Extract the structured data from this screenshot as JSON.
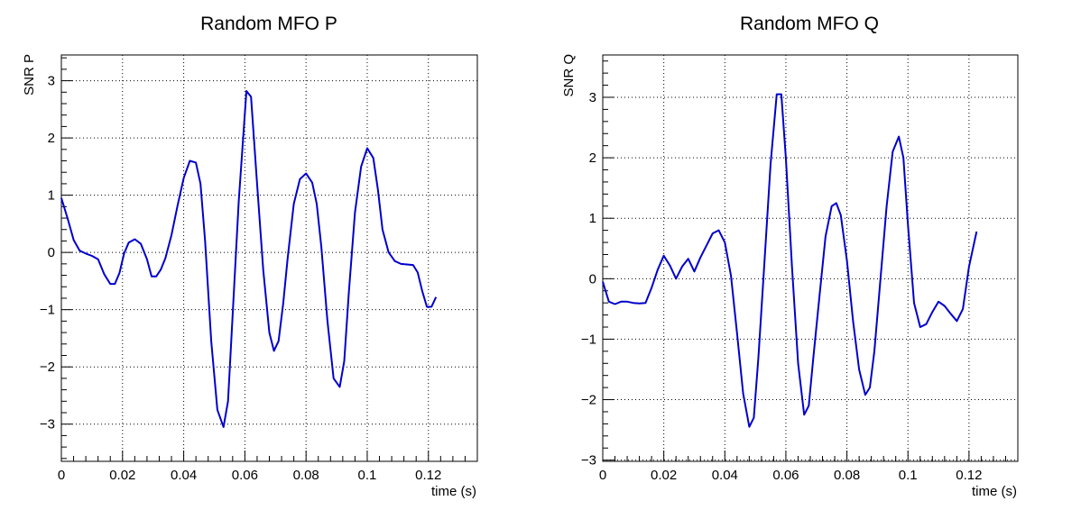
{
  "chart_data": [
    {
      "type": "line",
      "title": "Random MFO P",
      "xlabel": "time (s)",
      "ylabel": "SNR P",
      "xlim": [
        0,
        0.136
      ],
      "ylim": [
        -3.65,
        3.45
      ],
      "x_ticks": [
        0,
        0.02,
        0.04,
        0.06,
        0.08,
        0.1,
        0.12
      ],
      "x_tick_labels": [
        "0",
        "0.02",
        "0.04",
        "0.06",
        "0.08",
        "0.1",
        "0.12"
      ],
      "y_ticks": [
        -3,
        -2,
        -1,
        0,
        1,
        2,
        3
      ],
      "y_tick_labels": [
        "−3",
        "−2",
        "−1",
        "0",
        "1",
        "2",
        "3"
      ],
      "grid": true,
      "color": "#0000cc",
      "series": [
        {
          "x": [
            0,
            0.002,
            0.004,
            0.006,
            0.008,
            0.01,
            0.012,
            0.014,
            0.016,
            0.0175,
            0.019,
            0.0205,
            0.022,
            0.024,
            0.026,
            0.028,
            0.0295,
            0.031,
            0.0325,
            0.034,
            0.036,
            0.038,
            0.04,
            0.042,
            0.044,
            0.0455,
            0.047,
            0.049,
            0.051,
            0.053,
            0.0545,
            0.056,
            0.058,
            0.0605,
            0.062,
            0.064,
            0.066,
            0.068,
            0.0695,
            0.071,
            0.0725,
            0.074,
            0.076,
            0.078,
            0.08,
            0.082,
            0.0835,
            0.085,
            0.087,
            0.089,
            0.091,
            0.0925,
            0.094,
            0.096,
            0.098,
            0.1,
            0.102,
            0.1035,
            0.105,
            0.107,
            0.109,
            0.111,
            0.113,
            0.115,
            0.1165,
            0.118,
            0.1195,
            0.121,
            0.1225
          ],
          "y": [
            0.95,
            0.6,
            0.22,
            0.03,
            -0.02,
            -0.06,
            -0.12,
            -0.38,
            -0.55,
            -0.55,
            -0.36,
            -0.02,
            0.17,
            0.23,
            0.15,
            -0.12,
            -0.42,
            -0.42,
            -0.3,
            -0.1,
            0.3,
            0.82,
            1.3,
            1.6,
            1.57,
            1.2,
            0.2,
            -1.55,
            -2.75,
            -3.05,
            -2.6,
            -1.1,
            0.9,
            2.82,
            2.72,
            1.2,
            -0.3,
            -1.4,
            -1.72,
            -1.55,
            -0.9,
            -0.1,
            0.85,
            1.28,
            1.38,
            1.22,
            0.85,
            0.1,
            -1.2,
            -2.2,
            -2.35,
            -1.9,
            -0.7,
            0.7,
            1.5,
            1.82,
            1.65,
            1.1,
            0.4,
            0.0,
            -0.15,
            -0.2,
            -0.21,
            -0.22,
            -0.35,
            -0.68,
            -0.95,
            -0.95,
            -0.78
          ]
        }
      ]
    },
    {
      "type": "line",
      "title": "Random MFO Q",
      "xlabel": "time (s)",
      "ylabel": "SNR Q",
      "xlim": [
        0,
        0.136
      ],
      "ylim": [
        -3.02,
        3.7
      ],
      "x_ticks": [
        0,
        0.02,
        0.04,
        0.06,
        0.08,
        0.1,
        0.12
      ],
      "x_tick_labels": [
        "0",
        "0.02",
        "0.04",
        "0.06",
        "0.08",
        "0.1",
        "0.12"
      ],
      "y_ticks": [
        -3,
        -2,
        -1,
        0,
        1,
        2,
        3
      ],
      "y_tick_labels": [
        "−3",
        "−2",
        "−1",
        "0",
        "1",
        "2",
        "3"
      ],
      "grid": true,
      "color": "#0000cc",
      "series": [
        {
          "x": [
            0,
            0.002,
            0.004,
            0.006,
            0.008,
            0.01,
            0.012,
            0.014,
            0.016,
            0.018,
            0.02,
            0.022,
            0.024,
            0.026,
            0.028,
            0.03,
            0.032,
            0.034,
            0.036,
            0.038,
            0.04,
            0.042,
            0.044,
            0.046,
            0.048,
            0.0495,
            0.051,
            0.053,
            0.055,
            0.057,
            0.0585,
            0.06,
            0.062,
            0.064,
            0.066,
            0.0675,
            0.069,
            0.071,
            0.073,
            0.075,
            0.0765,
            0.078,
            0.08,
            0.082,
            0.084,
            0.086,
            0.0875,
            0.089,
            0.091,
            0.093,
            0.095,
            0.097,
            0.0985,
            0.1,
            0.102,
            0.104,
            0.106,
            0.108,
            0.11,
            0.112,
            0.114,
            0.116,
            0.118,
            0.12,
            0.1225
          ],
          "y": [
            -0.05,
            -0.38,
            -0.42,
            -0.38,
            -0.38,
            -0.4,
            -0.41,
            -0.4,
            -0.15,
            0.15,
            0.38,
            0.22,
            0.0,
            0.2,
            0.33,
            0.12,
            0.35,
            0.55,
            0.75,
            0.8,
            0.6,
            0.05,
            -0.9,
            -1.9,
            -2.45,
            -2.3,
            -1.3,
            0.3,
            1.9,
            3.05,
            3.05,
            2.0,
            0.2,
            -1.4,
            -2.25,
            -2.1,
            -1.3,
            -0.3,
            0.7,
            1.2,
            1.25,
            1.05,
            0.3,
            -0.7,
            -1.5,
            -1.92,
            -1.8,
            -1.2,
            0.0,
            1.2,
            2.1,
            2.35,
            2.0,
            0.9,
            -0.4,
            -0.8,
            -0.75,
            -0.55,
            -0.38,
            -0.45,
            -0.58,
            -0.7,
            -0.5,
            0.2,
            0.78
          ]
        }
      ]
    }
  ]
}
